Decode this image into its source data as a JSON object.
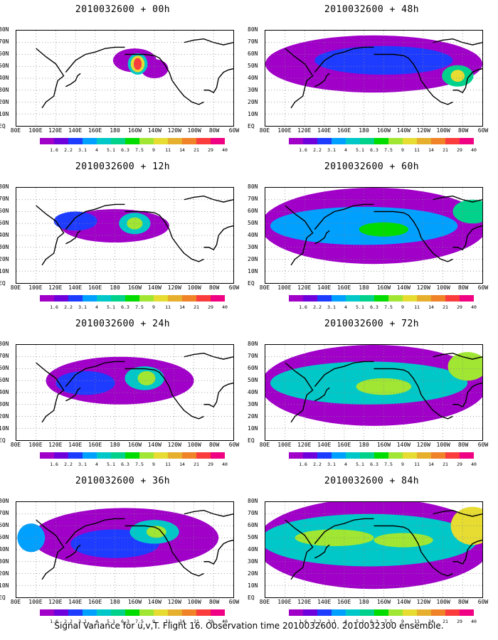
{
  "caption": "Signal Variance for u,v,T. Flight 16. Observation time 2010032600. 2010032300 ensemble.",
  "colorbar": {
    "labels": [
      "1.6",
      "2.2",
      "3.1",
      "4",
      "5.1",
      "6.3",
      "7.5",
      "9",
      "11",
      "14",
      "21",
      "29",
      "40"
    ],
    "colors": [
      "#a000c8",
      "#6e00dc",
      "#1e3cff",
      "#00a0ff",
      "#00c8c8",
      "#00d28c",
      "#00dc00",
      "#a0e632",
      "#e6dc32",
      "#e6af2d",
      "#f08228",
      "#fa3c3c",
      "#f00082"
    ]
  },
  "axes": {
    "lat_labels": [
      "80N",
      "70N",
      "60N",
      "50N",
      "40N",
      "30N",
      "20N",
      "10N",
      "EQ"
    ],
    "lon_labels": [
      "80E",
      "100E",
      "120E",
      "140E",
      "160E",
      "180",
      "160W",
      "140W",
      "120W",
      "100W",
      "80W",
      "60W"
    ]
  },
  "chart_data": [
    {
      "type": "heatmap",
      "title": "2010032600 + 00h",
      "xlim": [
        80,
        300
      ],
      "ylim": [
        0,
        80
      ],
      "blobs": [
        {
          "x": 200,
          "y": 55,
          "rx": 22,
          "ry": 10,
          "level": 0
        },
        {
          "x": 220,
          "y": 48,
          "rx": 14,
          "ry": 8,
          "level": 0
        },
        {
          "x": 203,
          "y": 52,
          "rx": 10,
          "ry": 9,
          "level": 4
        },
        {
          "x": 203,
          "y": 52,
          "rx": 7,
          "ry": 7,
          "level": 8
        },
        {
          "x": 203,
          "y": 52,
          "rx": 4,
          "ry": 5,
          "level": 11
        }
      ]
    },
    {
      "type": "heatmap",
      "title": "2010032600 + 12h",
      "xlim": [
        80,
        300
      ],
      "ylim": [
        0,
        80
      ],
      "blobs": [
        {
          "x": 180,
          "y": 48,
          "rx": 55,
          "ry": 14,
          "level": 0
        },
        {
          "x": 140,
          "y": 52,
          "rx": 22,
          "ry": 8,
          "level": 2
        },
        {
          "x": 200,
          "y": 50,
          "rx": 16,
          "ry": 9,
          "level": 4
        },
        {
          "x": 200,
          "y": 50,
          "rx": 8,
          "ry": 5,
          "level": 7
        }
      ]
    },
    {
      "type": "heatmap",
      "title": "2010032600 + 24h",
      "xlim": [
        80,
        300
      ],
      "ylim": [
        0,
        80
      ],
      "blobs": [
        {
          "x": 185,
          "y": 50,
          "rx": 75,
          "ry": 20,
          "level": 0
        },
        {
          "x": 150,
          "y": 48,
          "rx": 30,
          "ry": 10,
          "level": 2
        },
        {
          "x": 210,
          "y": 52,
          "rx": 20,
          "ry": 10,
          "level": 4
        },
        {
          "x": 212,
          "y": 52,
          "rx": 9,
          "ry": 6,
          "level": 7
        }
      ]
    },
    {
      "type": "heatmap",
      "title": "2010032600 + 36h",
      "xlim": [
        80,
        300
      ],
      "ylim": [
        0,
        80
      ],
      "blobs": [
        {
          "x": 190,
          "y": 50,
          "rx": 95,
          "ry": 25,
          "level": 0
        },
        {
          "x": 95,
          "y": 50,
          "rx": 14,
          "ry": 12,
          "level": 3
        },
        {
          "x": 180,
          "y": 45,
          "rx": 45,
          "ry": 12,
          "level": 2
        },
        {
          "x": 220,
          "y": 55,
          "rx": 25,
          "ry": 10,
          "level": 4
        },
        {
          "x": 222,
          "y": 55,
          "rx": 10,
          "ry": 5,
          "level": 7
        }
      ]
    },
    {
      "type": "heatmap",
      "title": "2010032600 + 48h",
      "xlim": [
        80,
        300
      ],
      "ylim": [
        0,
        80
      ],
      "blobs": [
        {
          "x": 190,
          "y": 52,
          "rx": 110,
          "ry": 24,
          "level": 0
        },
        {
          "x": 200,
          "y": 55,
          "rx": 70,
          "ry": 12,
          "level": 2
        },
        {
          "x": 275,
          "y": 42,
          "rx": 16,
          "ry": 9,
          "level": 5
        },
        {
          "x": 275,
          "y": 42,
          "rx": 7,
          "ry": 5,
          "level": 8
        }
      ]
    },
    {
      "type": "heatmap",
      "title": "2010032600 + 60h",
      "xlim": [
        80,
        300
      ],
      "ylim": [
        0,
        80
      ],
      "blobs": [
        {
          "x": 190,
          "y": 48,
          "rx": 115,
          "ry": 32,
          "level": 0
        },
        {
          "x": 180,
          "y": 48,
          "rx": 95,
          "ry": 16,
          "level": 3
        },
        {
          "x": 200,
          "y": 45,
          "rx": 25,
          "ry": 6,
          "level": 6
        },
        {
          "x": 290,
          "y": 60,
          "rx": 20,
          "ry": 10,
          "level": 5
        }
      ]
    },
    {
      "type": "heatmap",
      "title": "2010032600 + 72h",
      "xlim": [
        80,
        300
      ],
      "ylim": [
        0,
        80
      ],
      "blobs": [
        {
          "x": 190,
          "y": 46,
          "rx": 115,
          "ry": 34,
          "level": 0
        },
        {
          "x": 185,
          "y": 48,
          "rx": 100,
          "ry": 18,
          "level": 4
        },
        {
          "x": 200,
          "y": 45,
          "rx": 28,
          "ry": 7,
          "level": 7
        },
        {
          "x": 285,
          "y": 62,
          "rx": 20,
          "ry": 12,
          "level": 7
        }
      ]
    },
    {
      "type": "heatmap",
      "title": "2010032600 + 84h",
      "xlim": [
        80,
        300
      ],
      "ylim": [
        0,
        80
      ],
      "blobs": [
        {
          "x": 190,
          "y": 45,
          "rx": 120,
          "ry": 38,
          "level": 0
        },
        {
          "x": 185,
          "y": 48,
          "rx": 110,
          "ry": 22,
          "level": 4
        },
        {
          "x": 150,
          "y": 50,
          "rx": 40,
          "ry": 7,
          "level": 7
        },
        {
          "x": 220,
          "y": 48,
          "rx": 30,
          "ry": 6,
          "level": 7
        },
        {
          "x": 290,
          "y": 60,
          "rx": 22,
          "ry": 16,
          "level": 8
        }
      ]
    }
  ]
}
